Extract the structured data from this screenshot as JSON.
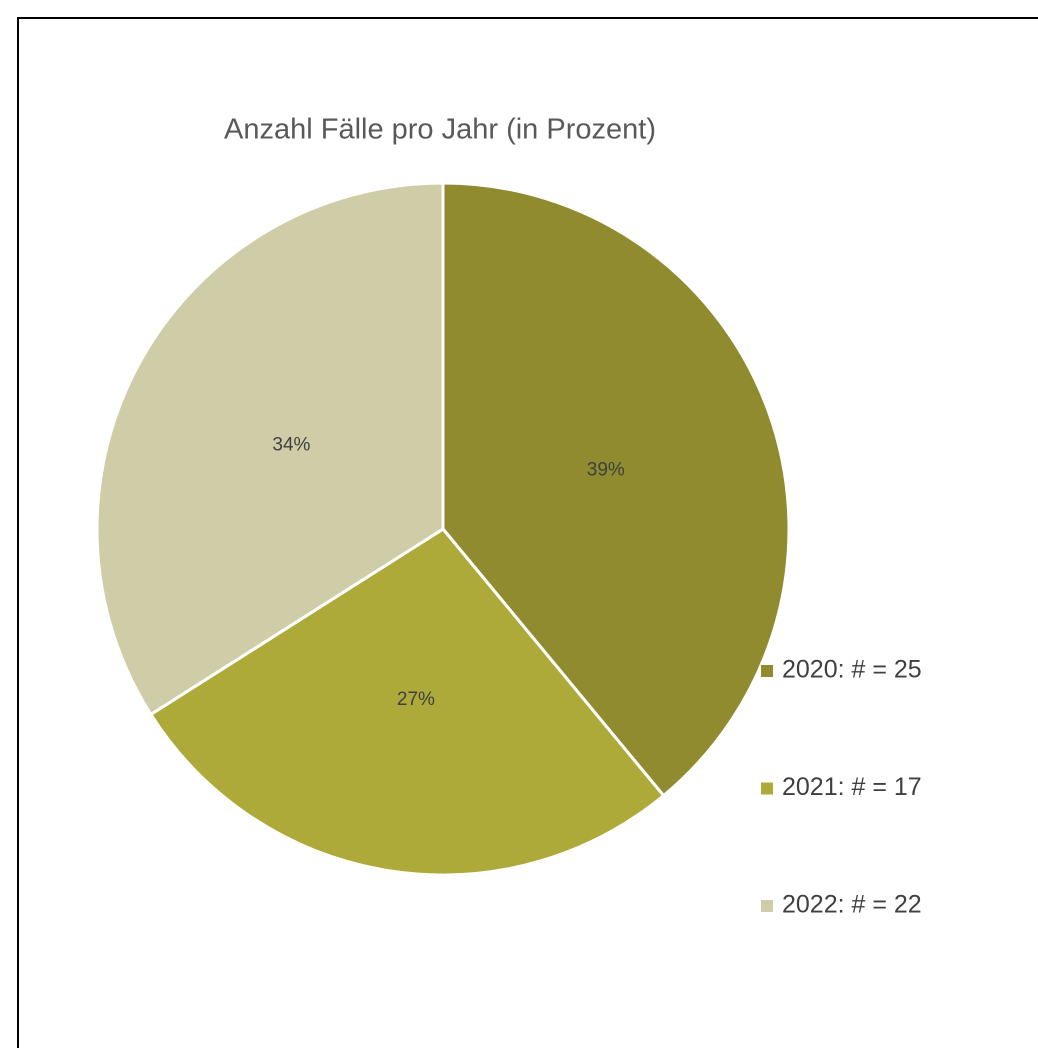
{
  "chart_data": {
    "type": "pie",
    "title": "Anzahl Fälle pro Jahr (in Prozent)",
    "categories": [
      "2020: # = 25",
      "2021: # = 17",
      "2022: # = 22"
    ],
    "values": [
      39,
      27,
      34
    ],
    "value_labels": [
      "39%",
      "27%",
      "34%"
    ],
    "colors": [
      "#8f8b2e",
      "#aeaa3a",
      "#cfcca8"
    ],
    "legend": "right"
  }
}
